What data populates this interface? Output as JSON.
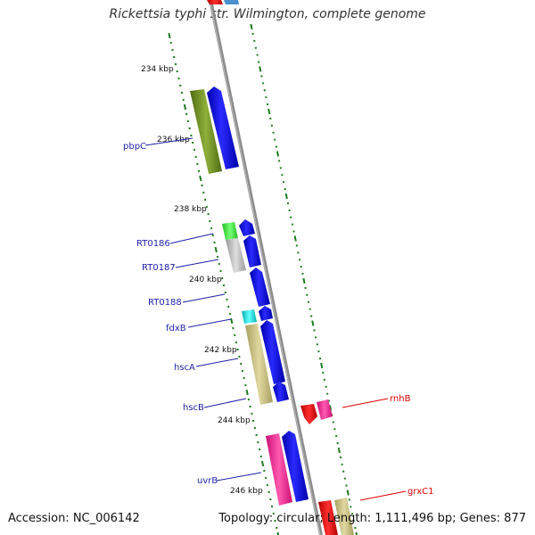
{
  "title": "Rickettsia typhi str. Wilmington, complete genome",
  "footer": {
    "accession": "Accession: NC_006142",
    "summary": "Topology: circular; Length: 1,111,496 bp; Genes: 877"
  },
  "ruler_labels": [
    "234 kbp",
    "236 kbp",
    "238 kbp",
    "240 kbp",
    "242 kbp",
    "244 kbp",
    "246 kbp"
  ],
  "left_genes": [
    "pbpC",
    "RT0186",
    "RT0187",
    "RT0188",
    "fdxB",
    "hscA",
    "hscB",
    "uvrB"
  ],
  "right_genes": [
    "rnhB",
    "grxC1"
  ],
  "colors": {
    "backbone": "#8c8c8c",
    "tick": "#1f7a1f",
    "cds": "#0000ee",
    "left_label": "#1f1fa8",
    "right_label": "#dd0000",
    "olive": "#6b8e23",
    "khaki": "#c8c080",
    "lightgreen": "#44dd44",
    "gray": "#c0c0c0",
    "cyan": "#00e5e5",
    "pink": "#ff1493",
    "red": "#ee0000"
  }
}
